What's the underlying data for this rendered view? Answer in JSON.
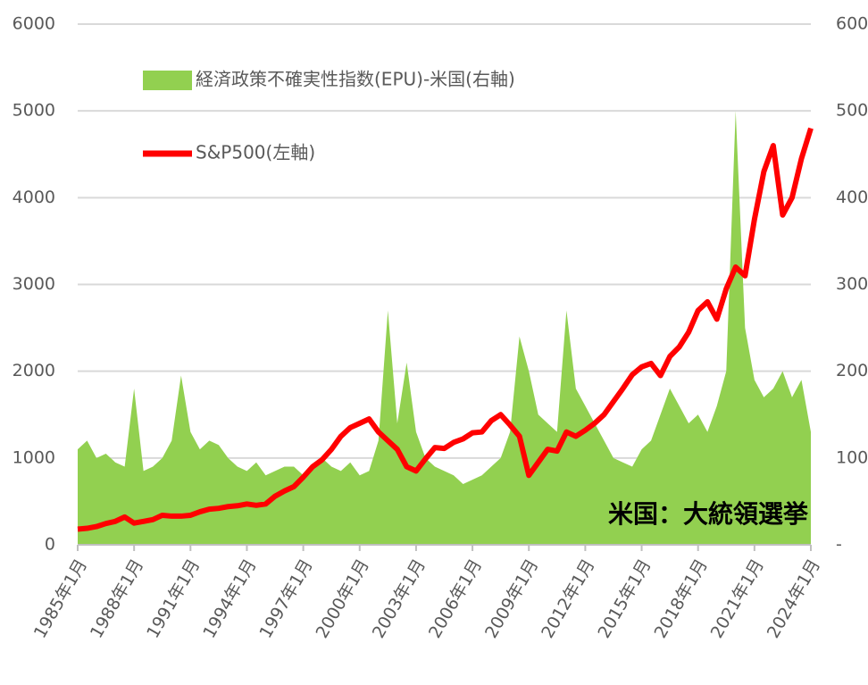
{
  "chart_data": {
    "type": "combo",
    "annotation": "米国：大統領選挙",
    "x": [
      1985,
      1985.5,
      1986,
      1986.5,
      1987,
      1987.5,
      1988,
      1988.5,
      1989,
      1989.5,
      1990,
      1990.5,
      1991,
      1991.5,
      1992,
      1992.5,
      1993,
      1993.5,
      1994,
      1994.5,
      1995,
      1995.5,
      1996,
      1996.5,
      1997,
      1997.5,
      1998,
      1998.5,
      1999,
      1999.5,
      2000,
      2000.5,
      2001,
      2001.5,
      2002,
      2002.5,
      2003,
      2003.5,
      2004,
      2004.5,
      2005,
      2005.5,
      2006,
      2006.5,
      2007,
      2007.5,
      2008,
      2008.5,
      2009,
      2009.5,
      2010,
      2010.5,
      2011,
      2011.5,
      2012,
      2012.5,
      2013,
      2013.5,
      2014,
      2014.5,
      2015,
      2015.5,
      2016,
      2016.5,
      2017,
      2017.5,
      2018,
      2018.5,
      2019,
      2019.5,
      2020,
      2020.5,
      2021,
      2021.5,
      2022,
      2022.5,
      2023,
      2023.5,
      2024
    ],
    "series": [
      {
        "name": "経済政策不確実性指数(EPU)-米国(右軸)",
        "type": "area",
        "axis": "y2",
        "color": "#92d050",
        "values": [
          110,
          120,
          100,
          105,
          95,
          90,
          180,
          85,
          90,
          100,
          120,
          195,
          130,
          110,
          120,
          115,
          100,
          90,
          85,
          95,
          80,
          85,
          90,
          90,
          80,
          90,
          100,
          90,
          85,
          95,
          80,
          85,
          120,
          270,
          140,
          210,
          130,
          100,
          90,
          85,
          80,
          70,
          75,
          80,
          90,
          100,
          130,
          240,
          200,
          150,
          140,
          130,
          270,
          180,
          160,
          140,
          120,
          100,
          95,
          90,
          110,
          120,
          150,
          180,
          160,
          140,
          150,
          130,
          160,
          200,
          500,
          250,
          190,
          170,
          180,
          200,
          170,
          190,
          130
        ]
      },
      {
        "name": "S&P500(左軸)",
        "type": "line",
        "axis": "y",
        "color": "#ff0000",
        "values": [
          180,
          190,
          210,
          245,
          270,
          320,
          250,
          270,
          290,
          340,
          330,
          330,
          340,
          380,
          410,
          420,
          440,
          450,
          470,
          455,
          470,
          560,
          620,
          670,
          780,
          900,
          980,
          1100,
          1250,
          1350,
          1400,
          1450,
          1300,
          1200,
          1100,
          900,
          850,
          990,
          1120,
          1110,
          1180,
          1220,
          1290,
          1300,
          1430,
          1500,
          1380,
          1250,
          800,
          950,
          1100,
          1080,
          1300,
          1250,
          1320,
          1400,
          1500,
          1650,
          1800,
          1960,
          2050,
          2090,
          1950,
          2170,
          2280,
          2450,
          2700,
          2800,
          2600,
          2950,
          3200,
          3100,
          3750,
          4300,
          4600,
          3800,
          4000,
          4450,
          4800
        ]
      }
    ],
    "xlim": [
      1985,
      2024
    ],
    "xticks": [
      {
        "value": 1985,
        "label": "1985年1月"
      },
      {
        "value": 1988,
        "label": "1988年1月"
      },
      {
        "value": 1991,
        "label": "1991年1月"
      },
      {
        "value": 1994,
        "label": "1994年1月"
      },
      {
        "value": 1997,
        "label": "1997年1月"
      },
      {
        "value": 2000,
        "label": "2000年1月"
      },
      {
        "value": 2003,
        "label": "2003年1月"
      },
      {
        "value": 2006,
        "label": "2006年1月"
      },
      {
        "value": 2009,
        "label": "2009年1月"
      },
      {
        "value": 2012,
        "label": "2012年1月"
      },
      {
        "value": 2015,
        "label": "2015年1月"
      },
      {
        "value": 2018,
        "label": "2018年1月"
      },
      {
        "value": 2021,
        "label": "2021年1月"
      },
      {
        "value": 2024,
        "label": "2024年1月"
      }
    ],
    "ylim": [
      0,
      6000
    ],
    "yticks": [
      0,
      1000,
      2000,
      3000,
      4000,
      5000,
      6000
    ],
    "y2lim": [
      0,
      600
    ],
    "y2ticks": [
      {
        "value": 0,
        "label": "-"
      },
      100,
      200,
      300,
      400,
      500,
      600
    ],
    "grid": true
  }
}
